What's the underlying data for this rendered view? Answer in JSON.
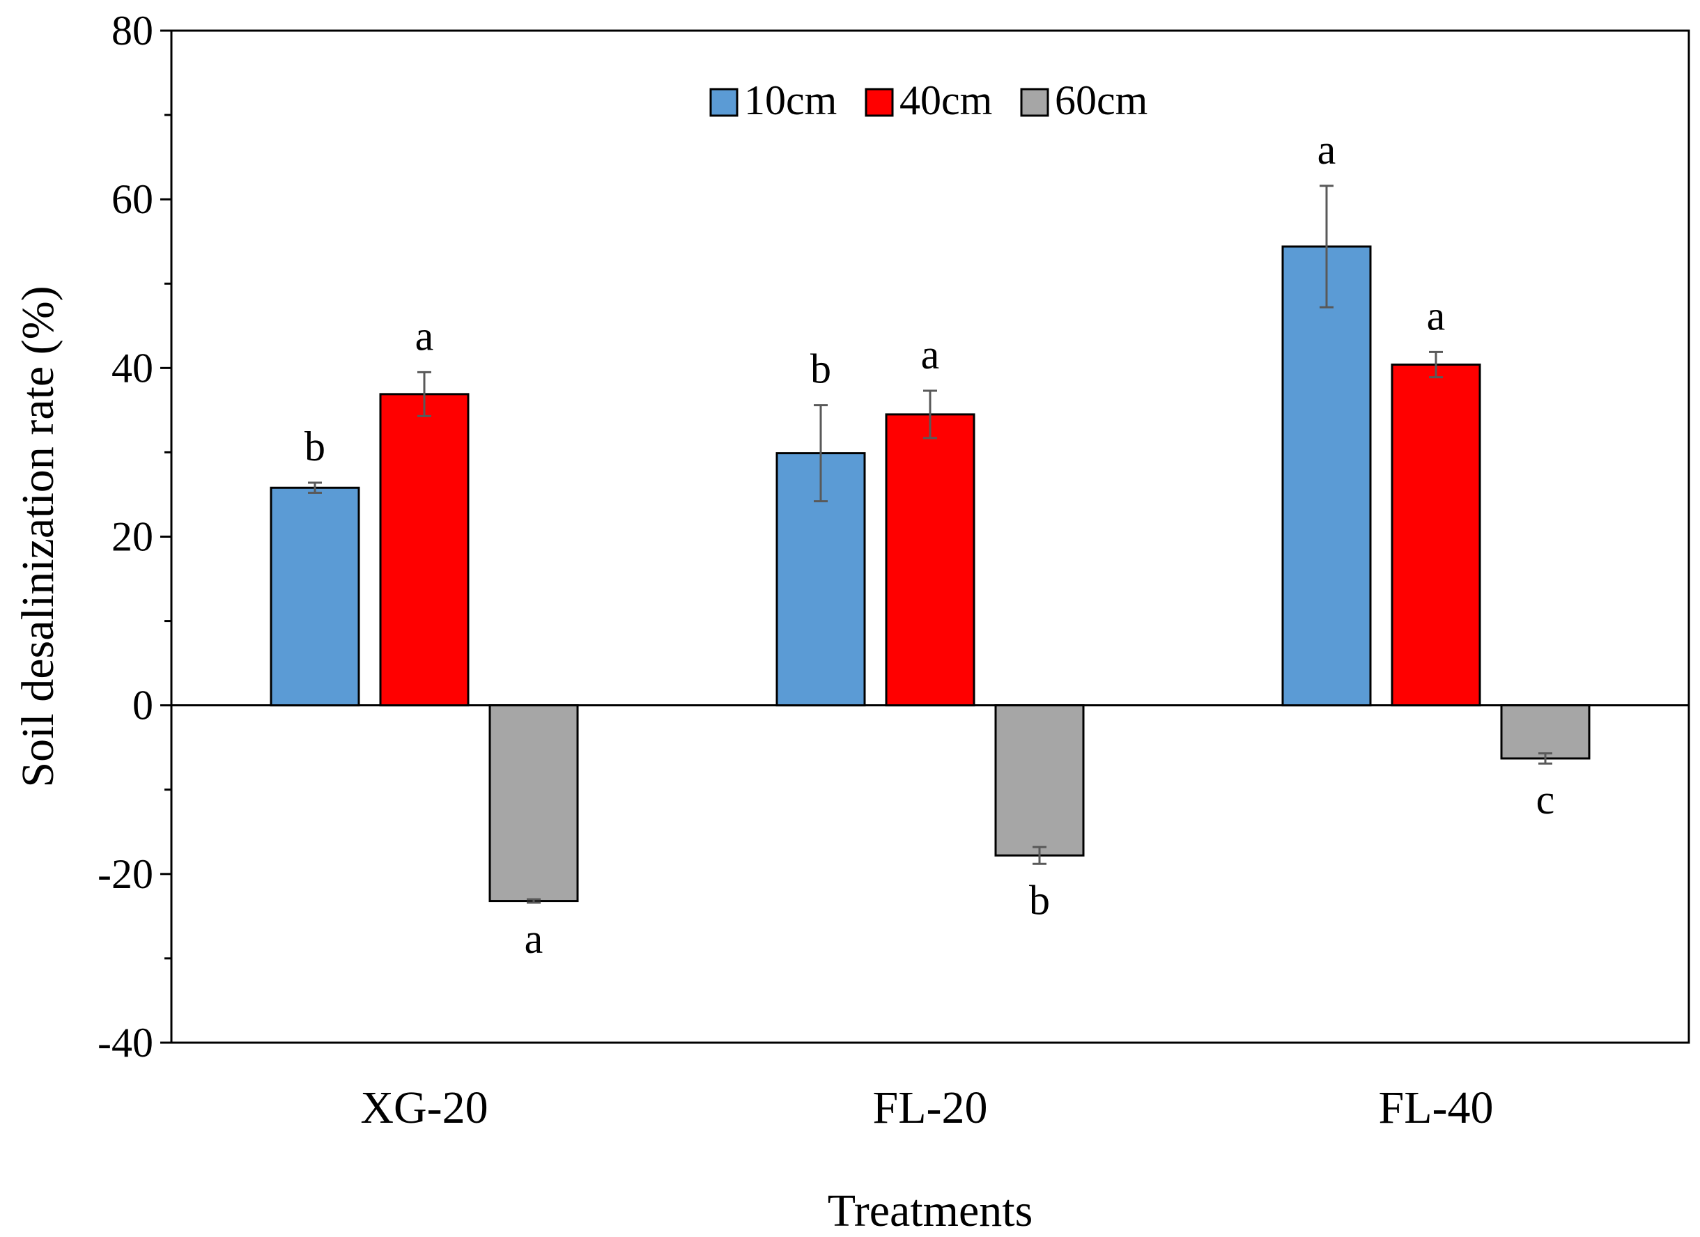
{
  "chart_data": {
    "type": "bar",
    "title": "",
    "xlabel": "Treatments",
    "ylabel": "Soil desalinization rate (%)",
    "ylim": [
      -40,
      80
    ],
    "y_ticks": [
      -40,
      -20,
      0,
      20,
      40,
      60,
      80
    ],
    "y_tick_labels": [
      "-40",
      "-20",
      "0",
      "20",
      "40",
      "60",
      "80"
    ],
    "grid": false,
    "legend_position": "top-center",
    "categories": [
      "XG-20",
      "FL-20",
      "FL-40"
    ],
    "series": [
      {
        "name": "10cm",
        "color": "#5b9bd5",
        "values": [
          25.8,
          29.9,
          54.4
        ],
        "errors": [
          0.6,
          5.7,
          7.2
        ],
        "letters": [
          "b",
          "b",
          "a"
        ]
      },
      {
        "name": "40cm",
        "color": "#ff0000",
        "values": [
          36.9,
          34.5,
          40.4
        ],
        "errors": [
          2.6,
          2.8,
          1.5
        ],
        "letters": [
          "a",
          "a",
          "a"
        ]
      },
      {
        "name": "60cm",
        "color": "#a6a6a6",
        "values": [
          -23.2,
          -17.8,
          -6.3
        ],
        "errors": [
          0.2,
          1.0,
          0.6
        ],
        "letters": [
          "a",
          "b",
          "c"
        ]
      }
    ]
  }
}
